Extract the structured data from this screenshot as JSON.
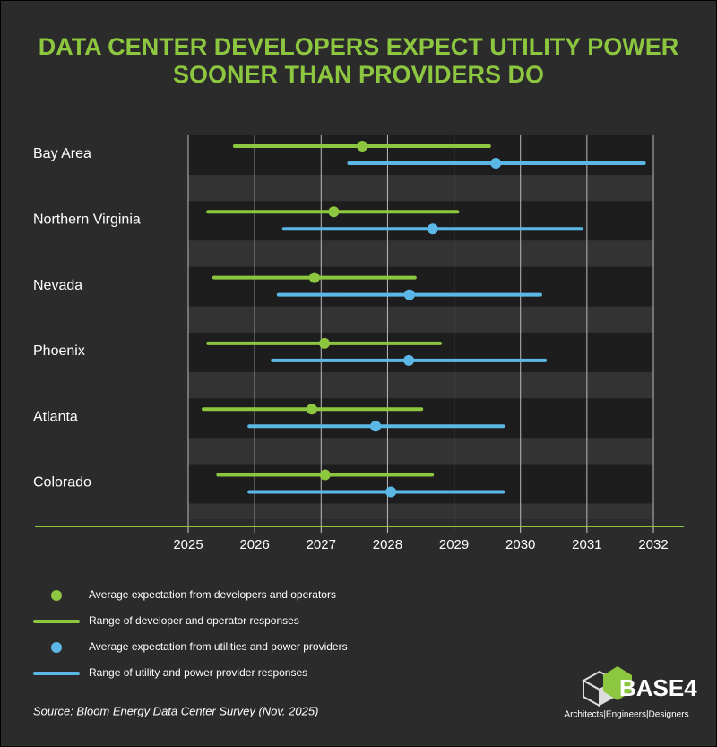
{
  "chart_data": {
    "type": "range-dot",
    "title": "DATA CENTER DEVELOPERS EXPECT UTILITY POWER SOONER THAN PROVIDERS DO",
    "categories": [
      "Bay Area",
      "Northern Virginia",
      "Nevada",
      "Phoenix",
      "Atlanta",
      "Colorado"
    ],
    "series": [
      {
        "name": "Average expectation from developers and operators",
        "range_name": "Range of developer and operator responses",
        "color": "#8dc63f",
        "values": [
          2027.62,
          2027.19,
          2026.9,
          2027.05,
          2026.86,
          2027.06
        ],
        "low": [
          2025.7,
          2025.3,
          2025.39,
          2025.3,
          2025.23,
          2025.45
        ],
        "high": [
          2029.53,
          2029.05,
          2028.41,
          2028.79,
          2028.51,
          2028.67
        ]
      },
      {
        "name": "Average expectation from utilities and power providers",
        "range_name": "Range of utility and power provider responses",
        "color": "#5bb8e6",
        "values": [
          2029.63,
          2028.68,
          2028.33,
          2028.32,
          2027.82,
          2028.05
        ],
        "low": [
          2027.42,
          2026.44,
          2026.36,
          2026.27,
          2025.92,
          2025.92
        ],
        "high": [
          2031.86,
          2030.92,
          2030.3,
          2030.37,
          2029.74,
          2029.74
        ]
      }
    ],
    "xlim": [
      2025,
      2032
    ],
    "xticks": [
      2025,
      2026,
      2027,
      2028,
      2029,
      2030,
      2031,
      2032
    ],
    "grid": true,
    "source": "Source: Bloom Energy Data Center Survey (Nov. 2025)",
    "logo": {
      "name": "BASE4",
      "tagline": "Architects|Engineers|Designers"
    }
  }
}
